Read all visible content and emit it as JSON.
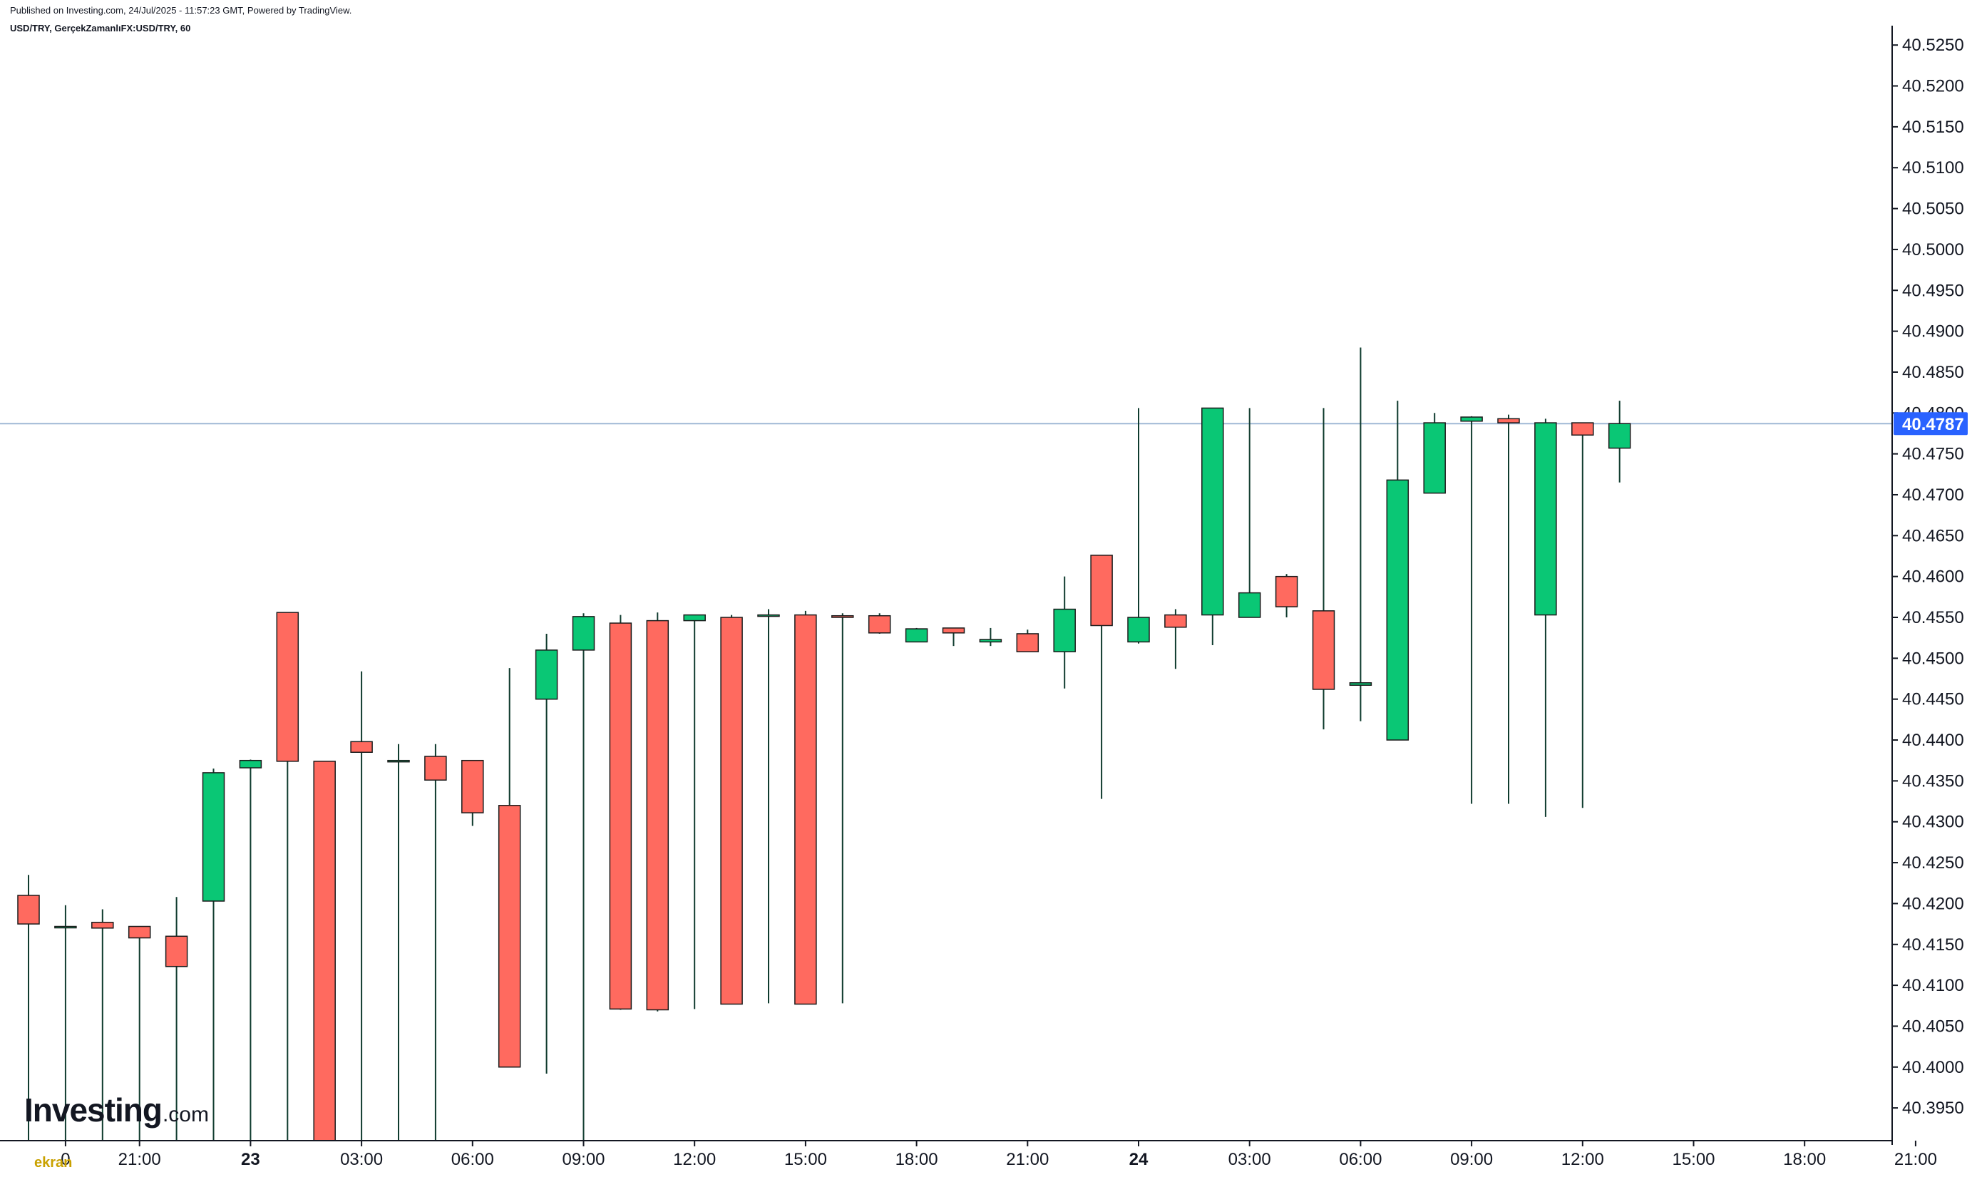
{
  "header": {
    "published": "Published on Investing.com, 24/Jul/2025 - 11:57:23 GMT, Powered by TradingView.",
    "symbol": "USD/TRY, GerçekZamanlıFX:USD/TRY, 60"
  },
  "logo": {
    "main": "Investing",
    "suffix": ".com"
  },
  "watermark": "ekran",
  "colors": {
    "up": "#0ac775",
    "down": "#ff6a5f",
    "wick": "#0f3b2e",
    "price_line": "#9fb8d6",
    "price_tag": "#2962ff",
    "axis": "#131722"
  },
  "chart_data": {
    "type": "candlestick",
    "interval": "60",
    "ylim": [
      40.391,
      40.5265
    ],
    "y_ticks": [
      "40.3950",
      "40.4000",
      "40.4050",
      "40.4100",
      "40.4150",
      "40.4200",
      "40.4250",
      "40.4300",
      "40.4350",
      "40.4400",
      "40.4450",
      "40.4500",
      "40.4550",
      "40.4600",
      "40.4650",
      "40.4700",
      "40.4750",
      "40.4800",
      "40.4850",
      "40.4900",
      "40.4950",
      "40.5000",
      "40.5050",
      "40.5100",
      "40.5150",
      "40.5200",
      "40.5250"
    ],
    "x_ticks": [
      {
        "label": "0",
        "hour": 1,
        "bold": false
      },
      {
        "label": "21:00",
        "hour": 3,
        "bold": false
      },
      {
        "label": "23",
        "hour": 6,
        "bold": true
      },
      {
        "label": "03:00",
        "hour": 9,
        "bold": false
      },
      {
        "label": "06:00",
        "hour": 12,
        "bold": false
      },
      {
        "label": "09:00",
        "hour": 15,
        "bold": false
      },
      {
        "label": "12:00",
        "hour": 18,
        "bold": false
      },
      {
        "label": "15:00",
        "hour": 21,
        "bold": false
      },
      {
        "label": "18:00",
        "hour": 24,
        "bold": false
      },
      {
        "label": "21:00",
        "hour": 27,
        "bold": false
      },
      {
        "label": "24",
        "hour": 30,
        "bold": true
      },
      {
        "label": "03:00",
        "hour": 33,
        "bold": false
      },
      {
        "label": "06:00",
        "hour": 36,
        "bold": false
      },
      {
        "label": "09:00",
        "hour": 39,
        "bold": false
      },
      {
        "label": "12:00",
        "hour": 42,
        "bold": false
      },
      {
        "label": "15:00",
        "hour": 45,
        "bold": false
      },
      {
        "label": "18:00",
        "hour": 48,
        "bold": false
      },
      {
        "label": "21:00",
        "hour": 51,
        "bold": false
      }
    ],
    "last_price": "40.4787",
    "last_price_value": 40.4787,
    "candles": [
      {
        "time": "22 19:00",
        "open": 40.421,
        "high": 40.4235,
        "low": 40.391,
        "close": 40.4175
      },
      {
        "time": "22 20:00",
        "open": 40.4172,
        "high": 40.4198,
        "low": 40.391,
        "close": 40.4172
      },
      {
        "time": "22 21:00",
        "open": 40.4177,
        "high": 40.4193,
        "low": 40.391,
        "close": 40.417
      },
      {
        "time": "22 22:00",
        "open": 40.4172,
        "high": 40.4172,
        "low": 40.391,
        "close": 40.4158
      },
      {
        "time": "22 23:00",
        "open": 40.416,
        "high": 40.4208,
        "low": 40.391,
        "close": 40.4123
      },
      {
        "time": "23 00:00",
        "open": 40.4203,
        "high": 40.4365,
        "low": 40.391,
        "close": 40.436
      },
      {
        "time": "23 01:00",
        "open": 40.4366,
        "high": 40.4376,
        "low": 40.391,
        "close": 40.4375
      },
      {
        "time": "23 02:00",
        "open": 40.4556,
        "high": 40.4556,
        "low": 40.391,
        "close": 40.4374
      },
      {
        "time": "23 03:00",
        "open": 40.4374,
        "high": 40.4374,
        "low": 40.391,
        "close": 40.391
      },
      {
        "time": "23 04:00",
        "open": 40.4398,
        "high": 40.4484,
        "low": 40.391,
        "close": 40.4385
      },
      {
        "time": "23 05:00",
        "open": 40.4375,
        "high": 40.4395,
        "low": 40.391,
        "close": 40.4375
      },
      {
        "time": "23 06:00",
        "open": 40.438,
        "high": 40.4395,
        "low": 40.391,
        "close": 40.4351
      },
      {
        "time": "23 07:00",
        "open": 40.4375,
        "high": 40.4375,
        "low": 40.4295,
        "close": 40.4311
      },
      {
        "time": "23 08:00",
        "open": 40.432,
        "high": 40.4488,
        "low": 40.4,
        "close": 40.4
      },
      {
        "time": "23 09:00",
        "open": 40.445,
        "high": 40.453,
        "low": 40.3992,
        "close": 40.451
      },
      {
        "time": "23 10:00",
        "open": 40.451,
        "high": 40.4555,
        "low": 40.391,
        "close": 40.4551
      },
      {
        "time": "23 11:00",
        "open": 40.4543,
        "high": 40.4553,
        "low": 40.407,
        "close": 40.4071
      },
      {
        "time": "23 12:00",
        "open": 40.4546,
        "high": 40.4556,
        "low": 40.4068,
        "close": 40.407
      },
      {
        "time": "23 13:00",
        "open": 40.4546,
        "high": 40.4553,
        "low": 40.4071,
        "close": 40.4553
      },
      {
        "time": "23 14:00",
        "open": 40.455,
        "high": 40.4553,
        "low": 40.4077,
        "close": 40.4077
      },
      {
        "time": "23 15:00",
        "open": 40.4553,
        "high": 40.456,
        "low": 40.4078,
        "close": 40.4553
      },
      {
        "time": "23 16:00",
        "open": 40.4553,
        "high": 40.4558,
        "low": 40.4077,
        "close": 40.4077
      },
      {
        "time": "23 17:00",
        "open": 40.4552,
        "high": 40.4555,
        "low": 40.4078,
        "close": 40.455
      },
      {
        "time": "23 18:00",
        "open": 40.4552,
        "high": 40.4555,
        "low": 40.453,
        "close": 40.4531
      },
      {
        "time": "23 19:00",
        "open": 40.452,
        "high": 40.4537,
        "low": 40.452,
        "close": 40.4536
      },
      {
        "time": "23 20:00",
        "open": 40.4537,
        "high": 40.4537,
        "low": 40.4515,
        "close": 40.4531
      },
      {
        "time": "23 21:00",
        "open": 40.452,
        "high": 40.4537,
        "low": 40.4515,
        "close": 40.4523
      },
      {
        "time": "23 22:00",
        "open": 40.453,
        "high": 40.4535,
        "low": 40.4508,
        "close": 40.4508
      },
      {
        "time": "23 23:00",
        "open": 40.4508,
        "high": 40.46,
        "low": 40.4463,
        "close": 40.456
      },
      {
        "time": "24 00:00",
        "open": 40.4626,
        "high": 40.4626,
        "low": 40.4328,
        "close": 40.454
      },
      {
        "time": "24 01:00",
        "open": 40.452,
        "high": 40.4806,
        "low": 40.4518,
        "close": 40.455
      },
      {
        "time": "24 02:00",
        "open": 40.4553,
        "high": 40.456,
        "low": 40.4487,
        "close": 40.4538
      },
      {
        "time": "24 03:00",
        "open": 40.4553,
        "high": 40.4806,
        "low": 40.4516,
        "close": 40.4806
      },
      {
        "time": "24 04:00",
        "open": 40.455,
        "high": 40.4806,
        "low": 40.455,
        "close": 40.458
      },
      {
        "time": "24 05:00",
        "open": 40.46,
        "high": 40.4603,
        "low": 40.455,
        "close": 40.4563
      },
      {
        "time": "24 06:00",
        "open": 40.4558,
        "high": 40.4806,
        "low": 40.4413,
        "close": 40.4462
      },
      {
        "time": "24 07:00",
        "open": 40.4467,
        "high": 40.488,
        "low": 40.4423,
        "close": 40.447
      },
      {
        "time": "24 08:00",
        "open": 40.44,
        "high": 40.4815,
        "low": 40.44,
        "close": 40.4718
      },
      {
        "time": "24 09:00",
        "open": 40.4702,
        "high": 40.48,
        "low": 40.4702,
        "close": 40.4788
      },
      {
        "time": "24 10:00",
        "open": 40.479,
        "high": 40.4796,
        "low": 40.4322,
        "close": 40.4795
      },
      {
        "time": "24 11:00",
        "open": 40.4793,
        "high": 40.4798,
        "low": 40.4322,
        "close": 40.4788
      },
      {
        "time": "24 12:00",
        "open": 40.4553,
        "high": 40.4793,
        "low": 40.4306,
        "close": 40.4788
      },
      {
        "time": "24 13:00",
        "open": 40.4788,
        "high": 40.4788,
        "low": 40.4317,
        "close": 40.4773
      },
      {
        "time": "24 14:00",
        "open": 40.4757,
        "high": 40.4815,
        "low": 40.4715,
        "close": 40.4787
      }
    ]
  }
}
